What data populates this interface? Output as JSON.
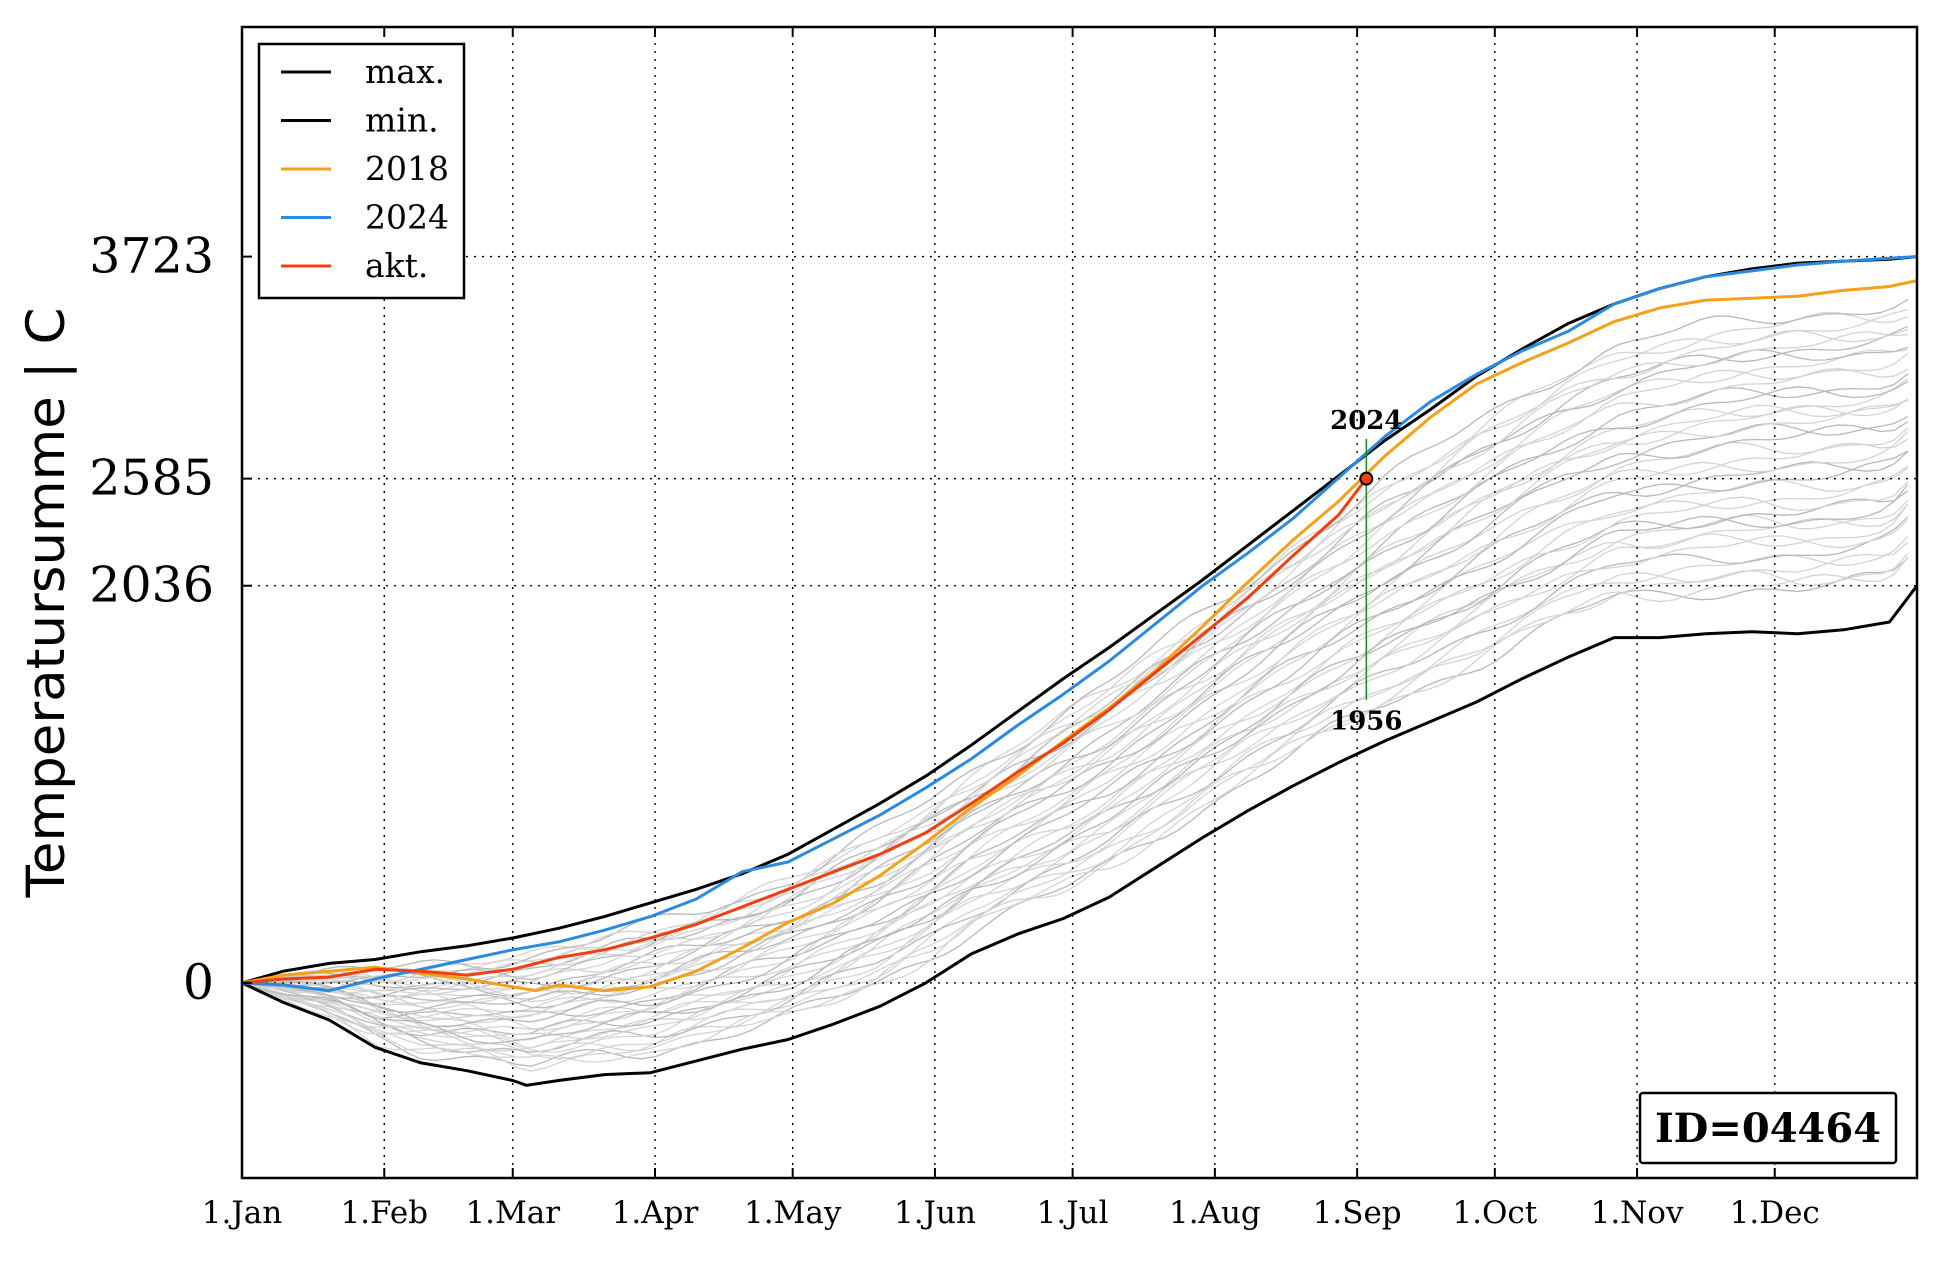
{
  "chart_data": {
    "type": "line",
    "ylabel": "Temperatursumme | C",
    "x_tick_labels": [
      "1.Jan",
      "1.Feb",
      "1.Mar",
      "1.Apr",
      "1.May",
      "1.Jun",
      "1.Jul",
      "1.Aug",
      "1.Sep",
      "1.Oct",
      "1.Nov",
      "1.Dec"
    ],
    "x_tick_days": [
      1,
      32,
      60,
      91,
      121,
      152,
      182,
      213,
      244,
      274,
      305,
      335
    ],
    "xlim": [
      1,
      366
    ],
    "ylim": [
      -1000,
      4900
    ],
    "y_ticks": [
      0,
      2036,
      2585,
      3723
    ],
    "y_tick_labels": [
      "0",
      "2036",
      "2585",
      "3723"
    ],
    "grid": true,
    "legend": {
      "position": "top-left",
      "entries": [
        {
          "label": "max.",
          "color": "#000000"
        },
        {
          "label": "min.",
          "color": "#000000"
        },
        {
          "label": "2018",
          "color": "#f5a01a"
        },
        {
          "label": "2024",
          "color": "#2a8ae0"
        },
        {
          "label": "akt.",
          "color": "#f04010"
        }
      ]
    },
    "series": [
      {
        "name": "max.",
        "color": "#000000",
        "x": [
          1,
          10,
          20,
          30,
          40,
          50,
          60,
          70,
          80,
          90,
          100,
          110,
          120,
          130,
          140,
          150,
          160,
          170,
          180,
          190,
          200,
          210,
          220,
          230,
          240,
          250,
          260,
          270,
          280,
          290,
          300,
          310,
          320,
          330,
          340,
          350,
          360,
          366
        ],
        "y": [
          0,
          60,
          100,
          120,
          160,
          190,
          230,
          280,
          340,
          410,
          480,
          560,
          660,
          790,
          920,
          1060,
          1220,
          1390,
          1560,
          1720,
          1890,
          2060,
          2240,
          2420,
          2600,
          2780,
          2940,
          3110,
          3250,
          3380,
          3480,
          3560,
          3620,
          3660,
          3690,
          3700,
          3710,
          3723
        ]
      },
      {
        "name": "min.",
        "color": "#000000",
        "x": [
          1,
          10,
          20,
          30,
          40,
          50,
          60,
          63,
          70,
          80,
          90,
          100,
          110,
          120,
          130,
          140,
          150,
          160,
          170,
          180,
          190,
          200,
          210,
          220,
          230,
          240,
          250,
          260,
          270,
          280,
          290,
          300,
          310,
          320,
          330,
          340,
          350,
          360,
          366
        ],
        "y": [
          0,
          -100,
          -190,
          -330,
          -410,
          -450,
          -500,
          -525,
          -500,
          -470,
          -460,
          -400,
          -340,
          -290,
          -210,
          -120,
          0,
          150,
          250,
          330,
          440,
          590,
          740,
          880,
          1010,
          1130,
          1240,
          1340,
          1440,
          1560,
          1670,
          1770,
          1770,
          1790,
          1800,
          1790,
          1810,
          1850,
          2036
        ]
      },
      {
        "name": "2018",
        "color": "#f5a01a",
        "x": [
          1,
          10,
          20,
          30,
          40,
          50,
          60,
          65,
          70,
          80,
          90,
          100,
          110,
          120,
          130,
          140,
          150,
          160,
          170,
          180,
          190,
          200,
          210,
          220,
          230,
          240,
          245,
          250,
          260,
          270,
          280,
          290,
          300,
          310,
          320,
          330,
          340,
          350,
          360,
          366
        ],
        "y": [
          0,
          40,
          60,
          80,
          50,
          20,
          -20,
          -40,
          -10,
          -40,
          -20,
          60,
          180,
          310,
          410,
          550,
          720,
          900,
          1060,
          1240,
          1410,
          1600,
          1820,
          2050,
          2270,
          2470,
          2585,
          2700,
          2900,
          3070,
          3180,
          3280,
          3390,
          3460,
          3500,
          3510,
          3520,
          3550,
          3570,
          3600
        ]
      },
      {
        "name": "2024",
        "color": "#2a8ae0",
        "x": [
          1,
          10,
          20,
          30,
          40,
          50,
          60,
          70,
          80,
          90,
          100,
          110,
          120,
          130,
          140,
          150,
          160,
          170,
          180,
          190,
          200,
          210,
          220,
          230,
          240,
          250,
          260,
          270,
          280,
          290,
          300,
          310,
          320,
          330,
          340,
          350,
          360,
          366
        ],
        "y": [
          0,
          -10,
          -40,
          20,
          70,
          120,
          170,
          210,
          270,
          340,
          430,
          570,
          620,
          740,
          860,
          1000,
          1150,
          1320,
          1480,
          1650,
          1840,
          2030,
          2200,
          2380,
          2590,
          2800,
          2980,
          3120,
          3240,
          3340,
          3480,
          3560,
          3620,
          3650,
          3680,
          3700,
          3715,
          3723
        ]
      },
      {
        "name": "akt.",
        "color": "#f04010",
        "x": [
          1,
          10,
          20,
          30,
          40,
          50,
          60,
          70,
          80,
          90,
          100,
          110,
          120,
          130,
          140,
          150,
          160,
          170,
          180,
          190,
          200,
          210,
          220,
          230,
          240,
          246
        ],
        "y": [
          0,
          20,
          30,
          70,
          60,
          40,
          70,
          130,
          170,
          230,
          300,
          390,
          480,
          570,
          660,
          770,
          920,
          1080,
          1230,
          1400,
          1590,
          1780,
          1970,
          2190,
          2400,
          2585
        ]
      }
    ],
    "annotations": [
      {
        "text": "2024",
        "x": 246,
        "y": 2840
      },
      {
        "text": "1956",
        "x": 246,
        "y": 1390
      }
    ],
    "marker": {
      "x": 246,
      "y": 2585
    },
    "id_box": "ID=04464"
  }
}
